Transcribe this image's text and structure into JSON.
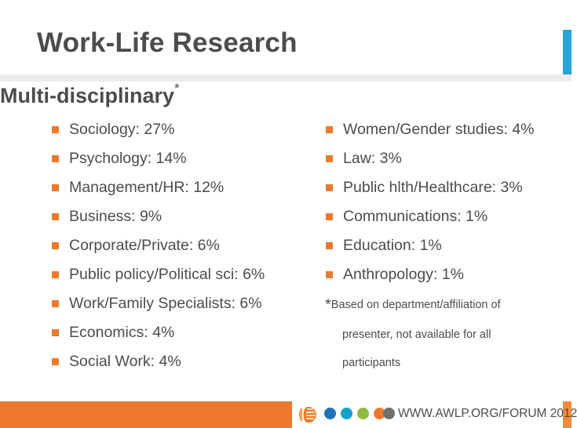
{
  "title": "Work-Life Research",
  "subtitle": {
    "text": "Multi-disciplinary",
    "marker": "*"
  },
  "left_items": [
    "Sociology: 27%",
    "Psychology: 14%",
    "Management/HR: 12%",
    "Business: 9%",
    "Corporate/Private: 6%",
    "Public policy/Political sci: 6%",
    "Work/Family Specialists: 6%",
    "Economics: 4%",
    "Social Work: 4%"
  ],
  "right_items": [
    "Women/Gender studies: 4%",
    "Law: 3%",
    "Public hlth/Healthcare: 3%",
    "Communications: 1%",
    "Education: 1%",
    "Anthropology: 1%"
  ],
  "note": {
    "marker": "*",
    "line1": "Based on department/affiliation of",
    "line2": "presenter, not available for all",
    "line3": "participants"
  },
  "footer": {
    "url": "WWW.AWLP.ORG/FORUM 2012"
  },
  "colors": {
    "accent_orange": "#ed7a2c",
    "accent_blue": "#2aa3d8",
    "dot_blue": "#1e73b8",
    "dot_teal": "#17a2c8",
    "dot_green": "#8cbd3f",
    "dot_gray": "#6f6f6f",
    "text": "#4c4c4c"
  }
}
